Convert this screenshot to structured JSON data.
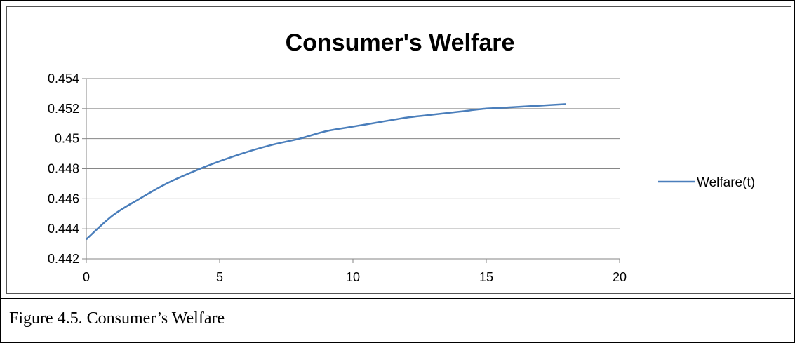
{
  "colors": {
    "series": "#4a7ebb",
    "grid": "#868686",
    "axis": "#868686",
    "text": "#000000"
  },
  "chart_data": {
    "type": "line",
    "title": "Consumer's Welfare",
    "xlabel": "",
    "ylabel": "",
    "xlim": [
      0,
      20
    ],
    "ylim": [
      0.442,
      0.454
    ],
    "x_ticks": [
      "0",
      "5",
      "10",
      "15",
      "20"
    ],
    "y_ticks": [
      "0.442",
      "0.444",
      "0.446",
      "0.448",
      "0.45",
      "0.452",
      "0.454"
    ],
    "grid": "horizontal",
    "legend": {
      "position": "right",
      "entries": [
        "Welfare(t)"
      ]
    },
    "series": [
      {
        "name": "Welfare(t)",
        "x": [
          0,
          1,
          2,
          3,
          4,
          5,
          6,
          7,
          8,
          9,
          10,
          11,
          12,
          13,
          14,
          15,
          16,
          17,
          18
        ],
        "values": [
          0.4433,
          0.4449,
          0.446,
          0.447,
          0.4478,
          0.4485,
          0.4491,
          0.4496,
          0.45,
          0.4505,
          0.4508,
          0.4511,
          0.4514,
          0.4516,
          0.4518,
          0.452,
          0.4521,
          0.4522,
          0.4523
        ]
      }
    ]
  },
  "caption": "Figure 4.5. Consumer’s Welfare"
}
